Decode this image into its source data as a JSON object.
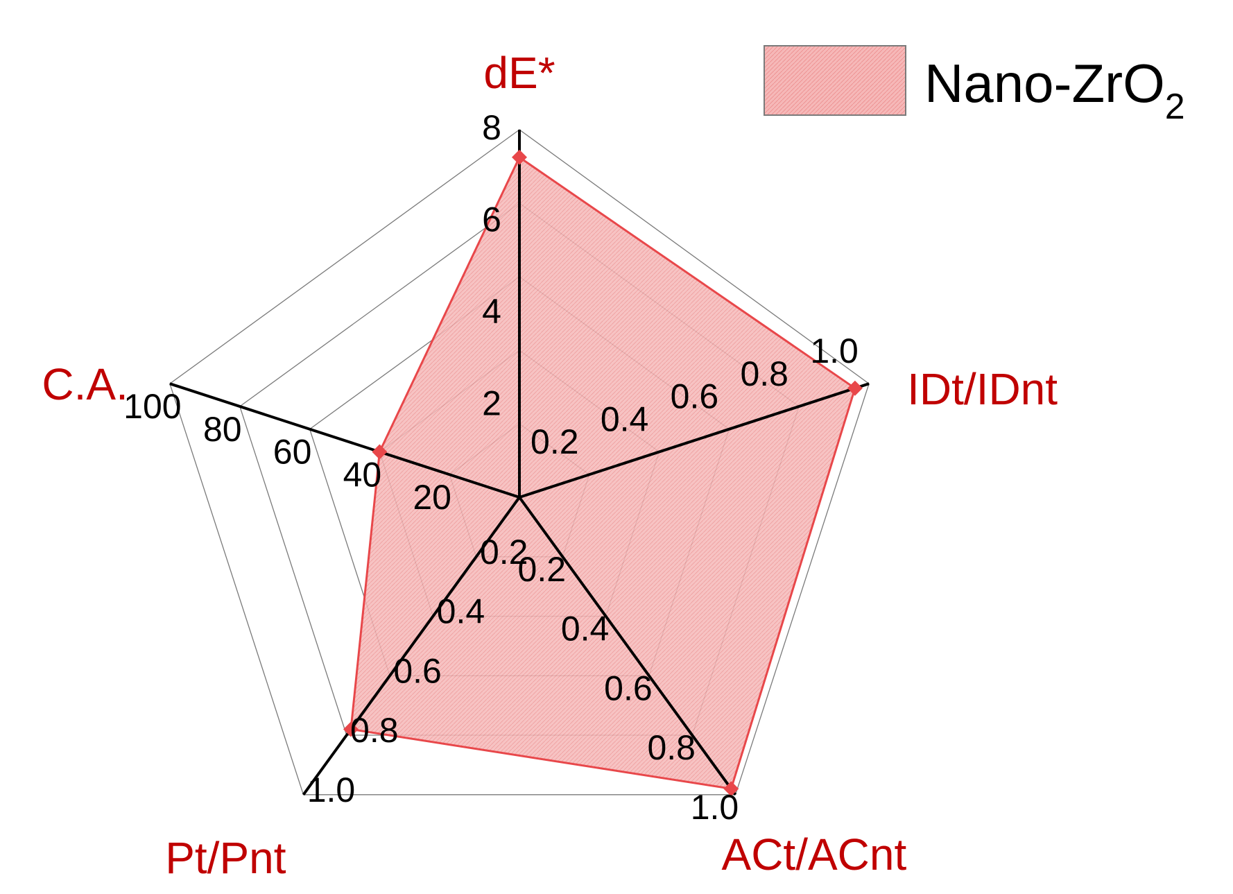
{
  "chart_data": {
    "type": "radar",
    "title": "",
    "axes": [
      {
        "label": "dE*",
        "min": 0,
        "max": 8,
        "ticks": [
          "2",
          "4",
          "6",
          "8"
        ]
      },
      {
        "label": "IDt/IDnt",
        "min": 0,
        "max": 1.0,
        "ticks": [
          "0.2",
          "0.4",
          "0.6",
          "0.8",
          "1.0"
        ]
      },
      {
        "label": "ACt/ACnt",
        "min": 0,
        "max": 1.0,
        "ticks": [
          "0.2",
          "0.4",
          "0.6",
          "0.8",
          "1.0"
        ]
      },
      {
        "label": "Pt/Pnt",
        "min": 0,
        "max": 1.0,
        "ticks": [
          "0.2",
          "0.4",
          "0.6",
          "0.8",
          "1.0"
        ]
      },
      {
        "label": "C.A.",
        "min": 0,
        "max": 100,
        "ticks": [
          "20",
          "40",
          "60",
          "80",
          "100"
        ]
      }
    ],
    "series": [
      {
        "name": "Nano-ZrO",
        "name_subscript": "2",
        "values": [
          7.4,
          0.96,
          0.98,
          0.78,
          40
        ]
      }
    ],
    "colors": {
      "fill": "#f4a6a6",
      "stroke": "#e8474a",
      "marker": "#e8474a",
      "axis_label": "#c00000",
      "grid": "#7a7a7a",
      "axis": "#000000"
    },
    "grid": true,
    "legend_position": "top-right"
  }
}
